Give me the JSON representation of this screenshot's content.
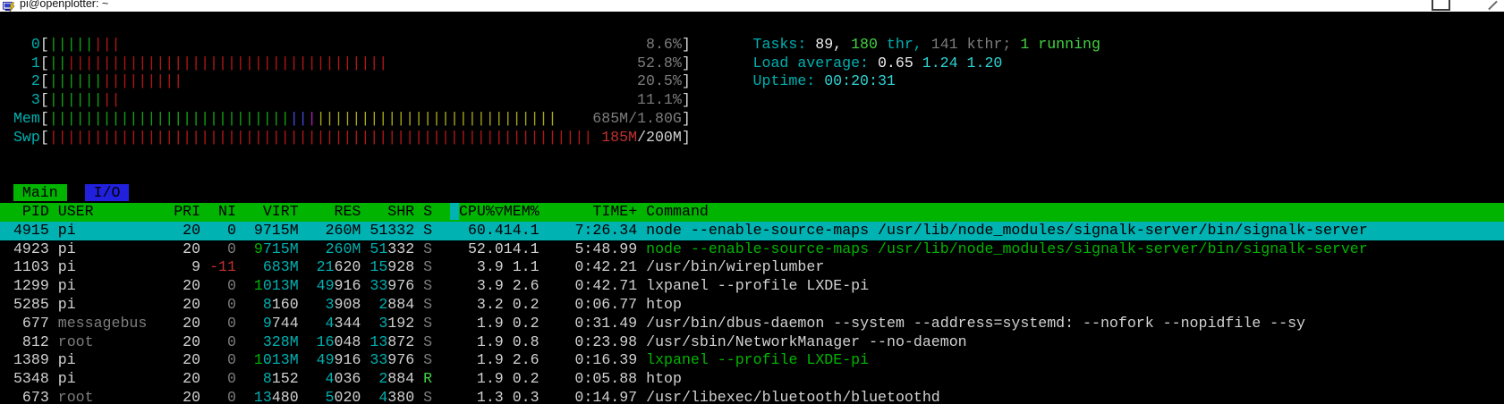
{
  "titlebar": {
    "title": "pi@openplotter: ~"
  },
  "palette": {
    "bg": "#000000",
    "fg": "#d2d2d2",
    "shadow": "#7d7d7d",
    "cyan": "#00b0b0",
    "cyan_bright": "#2fd4d4",
    "green": "#00b400",
    "green_bright": "#42d242",
    "white": "#efefef",
    "red": "#c23030",
    "bracket": "#d8d8d8",
    "bar_green": "#12a312",
    "bar_red": "#b41616",
    "bar_blue": "#4848d6",
    "bar_magenta": "#b01eb0",
    "bar_yellow": "#a8a816",
    "sel_bg": "#00b2b2",
    "hdr_bg": "#00b400",
    "tab_main_bg": "#00b400",
    "tab_io_bg": "#2020dd"
  },
  "meters": [
    {
      "label": "0",
      "value_segments": [
        [
          "8.6%",
          "shadow"
        ]
      ],
      "segments": [
        {
          "color": "bar_green",
          "count": 5
        },
        {
          "color": "bar_red",
          "count": 3
        }
      ]
    },
    {
      "label": "1",
      "value_segments": [
        [
          "52.8%",
          "shadow"
        ]
      ],
      "segments": [
        {
          "color": "bar_green",
          "count": 2
        },
        {
          "color": "bar_red",
          "count": 36
        }
      ]
    },
    {
      "label": "2",
      "value_segments": [
        [
          "20.5%",
          "shadow"
        ]
      ],
      "segments": [
        {
          "color": "bar_green",
          "count": 6
        },
        {
          "color": "bar_red",
          "count": 9
        }
      ]
    },
    {
      "label": "3",
      "value_segments": [
        [
          "11.1%",
          "shadow"
        ]
      ],
      "segments": [
        {
          "color": "bar_green",
          "count": 6
        },
        {
          "color": "bar_red",
          "count": 2
        }
      ]
    },
    {
      "label": "Mem",
      "value_segments": [
        [
          "685M/1.80G",
          "shadow"
        ]
      ],
      "segments": [
        {
          "color": "bar_green",
          "count": 27
        },
        {
          "color": "bar_blue",
          "count": 2
        },
        {
          "color": "bar_magenta",
          "count": 1
        },
        {
          "color": "bar_yellow",
          "count": 27
        }
      ]
    },
    {
      "label": "Swp",
      "value_segments": [
        [
          "185M",
          "red"
        ],
        [
          "/200M",
          "fg"
        ]
      ],
      "segments": [
        {
          "color": "bar_red",
          "count": 61
        }
      ]
    }
  ],
  "summary": [
    {
      "name": "tasks-summary",
      "segments": [
        [
          "Tasks: ",
          "cyan"
        ],
        [
          "89,",
          "white"
        ],
        [
          " ",
          "fg"
        ],
        [
          "180",
          "green_bright"
        ],
        [
          " thr,",
          "cyan"
        ],
        [
          " ",
          "fg"
        ],
        [
          "141 kthr;",
          "shadow"
        ],
        [
          " ",
          "fg"
        ],
        [
          "1 running",
          "green_bright"
        ]
      ]
    },
    {
      "name": "load-average",
      "segments": [
        [
          "Load average: ",
          "cyan"
        ],
        [
          "0.65 ",
          "white"
        ],
        [
          "1.24 ",
          "cyan_bright"
        ],
        [
          "1.20",
          "cyan_bright"
        ]
      ]
    },
    {
      "name": "uptime",
      "segments": [
        [
          "Uptime: ",
          "cyan"
        ],
        [
          "00:20:31",
          "cyan_bright"
        ]
      ]
    }
  ],
  "tabs": [
    {
      "label": "Main",
      "active": true
    },
    {
      "label": "I/O",
      "active": false
    }
  ],
  "table": {
    "header": {
      "pid": "PID",
      "user": "USER",
      "pri": "PRI",
      "ni": "NI",
      "virt": "VIRT",
      "res": "RES",
      "shr": "SHR",
      "s": "S",
      "cpu": "CPU%",
      "sort_arrow": "▽",
      "mem": "MEM%",
      "time": "TIME+",
      "command": "Command"
    },
    "rows": [
      {
        "pid": "4915",
        "user": "pi",
        "pri": "20",
        "ni": "0",
        "virt": "9715M",
        "res": "260M",
        "shr": "51332",
        "s": "S",
        "cpu": "60.4",
        "mem": "14.1",
        "time": "7:26.34",
        "command": "node --enable-source-maps /usr/lib/node_modules/signalk-server/bin/signalk-server",
        "selected": true,
        "thread": false,
        "other_user": false
      },
      {
        "pid": "4923",
        "user": "pi",
        "pri": "20",
        "ni": "0",
        "virt": "9715M",
        "res": "260M",
        "shr": "51332",
        "s": "S",
        "cpu": "52.0",
        "mem": "14.1",
        "time": "5:48.99",
        "command": "node --enable-source-maps /usr/lib/node_modules/signalk-server/bin/signalk-server",
        "selected": false,
        "thread": true,
        "other_user": false
      },
      {
        "pid": "1103",
        "user": "pi",
        "pri": "9",
        "ni": "-11",
        "virt": "683M",
        "res": "21620",
        "shr": "15928",
        "s": "S",
        "cpu": "3.9",
        "mem": "1.1",
        "time": "0:42.21",
        "command": "/usr/bin/wireplumber",
        "selected": false,
        "thread": false,
        "other_user": false
      },
      {
        "pid": "1299",
        "user": "pi",
        "pri": "20",
        "ni": "0",
        "virt": "1013M",
        "res": "49916",
        "shr": "33976",
        "s": "S",
        "cpu": "3.9",
        "mem": "2.6",
        "time": "0:42.71",
        "command": "lxpanel --profile LXDE-pi",
        "selected": false,
        "thread": false,
        "other_user": false
      },
      {
        "pid": "5285",
        "user": "pi",
        "pri": "20",
        "ni": "0",
        "virt": "8160",
        "res": "3908",
        "shr": "2884",
        "s": "S",
        "cpu": "3.2",
        "mem": "0.2",
        "time": "0:06.77",
        "command": "htop",
        "selected": false,
        "thread": false,
        "other_user": false
      },
      {
        "pid": "677",
        "user": "messagebus",
        "pri": "20",
        "ni": "0",
        "virt": "9744",
        "res": "4344",
        "shr": "3192",
        "s": "S",
        "cpu": "1.9",
        "mem": "0.2",
        "time": "0:31.49",
        "command": "/usr/bin/dbus-daemon --system --address=systemd: --nofork --nopidfile --sy",
        "selected": false,
        "thread": false,
        "other_user": true
      },
      {
        "pid": "812",
        "user": "root",
        "pri": "20",
        "ni": "0",
        "virt": "328M",
        "res": "16048",
        "shr": "13872",
        "s": "S",
        "cpu": "1.9",
        "mem": "0.8",
        "time": "0:23.98",
        "command": "/usr/sbin/NetworkManager --no-daemon",
        "selected": false,
        "thread": false,
        "other_user": true
      },
      {
        "pid": "1389",
        "user": "pi",
        "pri": "20",
        "ni": "0",
        "virt": "1013M",
        "res": "49916",
        "shr": "33976",
        "s": "S",
        "cpu": "1.9",
        "mem": "2.6",
        "time": "0:16.39",
        "command": "lxpanel --profile LXDE-pi",
        "selected": false,
        "thread": true,
        "other_user": false
      },
      {
        "pid": "5348",
        "user": "pi",
        "pri": "20",
        "ni": "0",
        "virt": "8152",
        "res": "4036",
        "shr": "2884",
        "s": "R",
        "cpu": "1.9",
        "mem": "0.2",
        "time": "0:05.88",
        "command": "htop",
        "selected": false,
        "thread": false,
        "other_user": false
      },
      {
        "pid": "673",
        "user": "root",
        "pri": "20",
        "ni": "0",
        "virt": "13480",
        "res": "5020",
        "shr": "4380",
        "s": "S",
        "cpu": "1.3",
        "mem": "0.3",
        "time": "0:14.97",
        "command": "/usr/libexec/bluetooth/bluetoothd",
        "selected": false,
        "thread": false,
        "other_user": true
      }
    ]
  }
}
